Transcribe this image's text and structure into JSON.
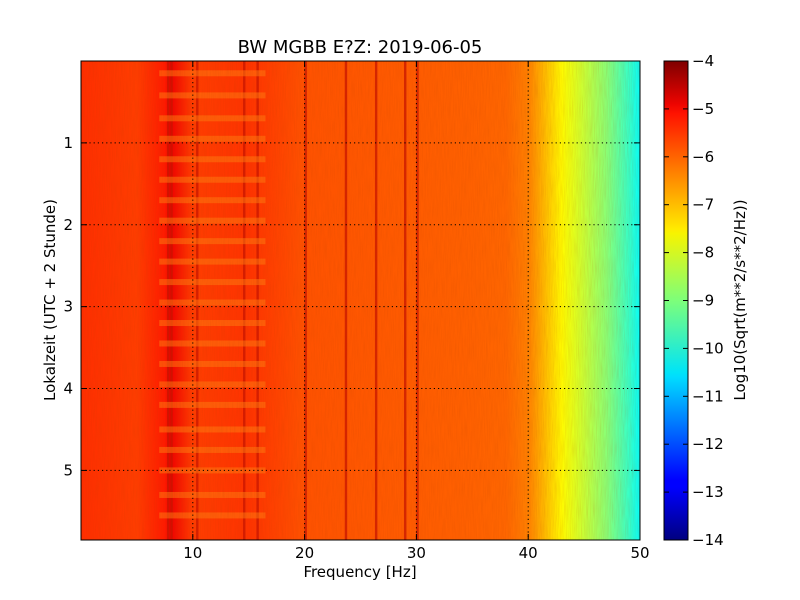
{
  "chart_data": {
    "type": "heatmap",
    "title": "BW MGBB E?Z: 2019-06-05",
    "xlabel": "Frequency [Hz]",
    "ylabel": "Lokalzeit (UTC + 2 Stunde)",
    "xlim": [
      0,
      50
    ],
    "ylim": [
      5.85,
      0
    ],
    "x_ticks": [
      10,
      20,
      30,
      40,
      50
    ],
    "x_tick_labels": [
      "10",
      "20",
      "30",
      "40",
      "50"
    ],
    "y_ticks": [
      1,
      2,
      3,
      4,
      5
    ],
    "y_tick_labels": [
      "1",
      "2",
      "3",
      "4",
      "5"
    ],
    "grid": true,
    "colorbar": {
      "label": "Log10(Sqrt(m**2/s**2/Hz))",
      "range": [
        -14,
        -4
      ],
      "ticks": [
        -4,
        -5,
        -6,
        -7,
        -8,
        -9,
        -10,
        -11,
        -12,
        -13,
        -14
      ],
      "tick_labels": [
        "−4",
        "−5",
        "−6",
        "−7",
        "−8",
        "−9",
        "−10",
        "−11",
        "−12",
        "−13",
        "−14"
      ],
      "colormap": "jet"
    },
    "spectrum_profile": {
      "frequency_hz": [
        0,
        5,
        7.5,
        8,
        10,
        15,
        20,
        25,
        30,
        35,
        38,
        40,
        41,
        42,
        43,
        44,
        45,
        46,
        47,
        48,
        49,
        50
      ],
      "log10_amplitude": [
        -5.7,
        -5.85,
        -5.5,
        -5.1,
        -5.85,
        -5.75,
        -6.05,
        -6.1,
        -6.15,
        -6.2,
        -6.25,
        -6.5,
        -6.9,
        -7.3,
        -7.7,
        -8.0,
        -8.3,
        -8.6,
        -8.9,
        -9.3,
        -9.7,
        -10.2
      ]
    },
    "narrow_lines_hz": [
      7.8,
      8.1,
      10.4,
      14.6,
      15.8,
      20.1,
      23.7,
      26.4,
      29.0,
      30.1
    ],
    "time_bands_hours": [
      0.15,
      0.42,
      0.7,
      0.95,
      1.2,
      1.45,
      1.7,
      1.95,
      2.2,
      2.45,
      2.7,
      2.95,
      3.2,
      3.45,
      3.7,
      3.95,
      4.2,
      4.5,
      4.75,
      5.0,
      5.3,
      5.55
    ]
  }
}
